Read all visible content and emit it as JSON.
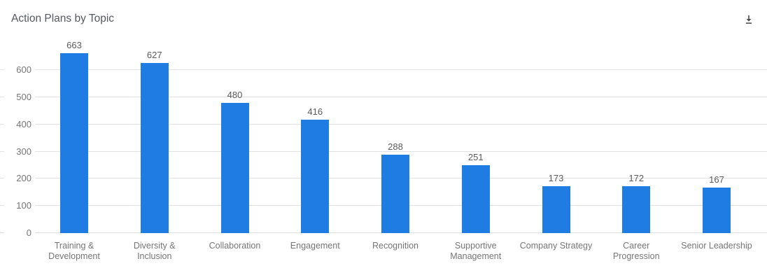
{
  "header": {
    "title": "Action Plans by Topic",
    "download_icon": "download-icon"
  },
  "colors": {
    "bar": "#1e7ce2",
    "gridline": "#e2e2e2",
    "tick_label": "#767676",
    "value_label": "#595959",
    "category_label": "#757575",
    "title": "#55585e",
    "icon": "#4d4d4d",
    "background": "#ffffff"
  },
  "chart_data": {
    "type": "bar",
    "title": "Action Plans by Topic",
    "categories": [
      "Training & Development",
      "Diversity & Inclusion",
      "Collaboration",
      "Engagement",
      "Recognition",
      "Supportive Management",
      "Company Strategy",
      "Career Progression",
      "Senior Leadership"
    ],
    "category_display_lines": [
      "Training &\nDevelopment",
      "Diversity &\nInclusion",
      "Collaboration",
      "Engagement",
      "Recognition",
      "Supportive\nManagement",
      "Company Strategy",
      "Career\nProgression",
      "Senior Leadership"
    ],
    "values": [
      663,
      627,
      480,
      416,
      288,
      251,
      173,
      172,
      167
    ],
    "value_labels": [
      "663",
      "627",
      "480",
      "416",
      "288",
      "251",
      "173",
      "172",
      "167"
    ],
    "xlabel": "",
    "ylabel": "",
    "ylim": [
      0,
      663
    ],
    "yticks": [
      0,
      100,
      200,
      300,
      400,
      500,
      600
    ],
    "grid": true,
    "legend": false,
    "bar_color": "#1e7ce2"
  }
}
